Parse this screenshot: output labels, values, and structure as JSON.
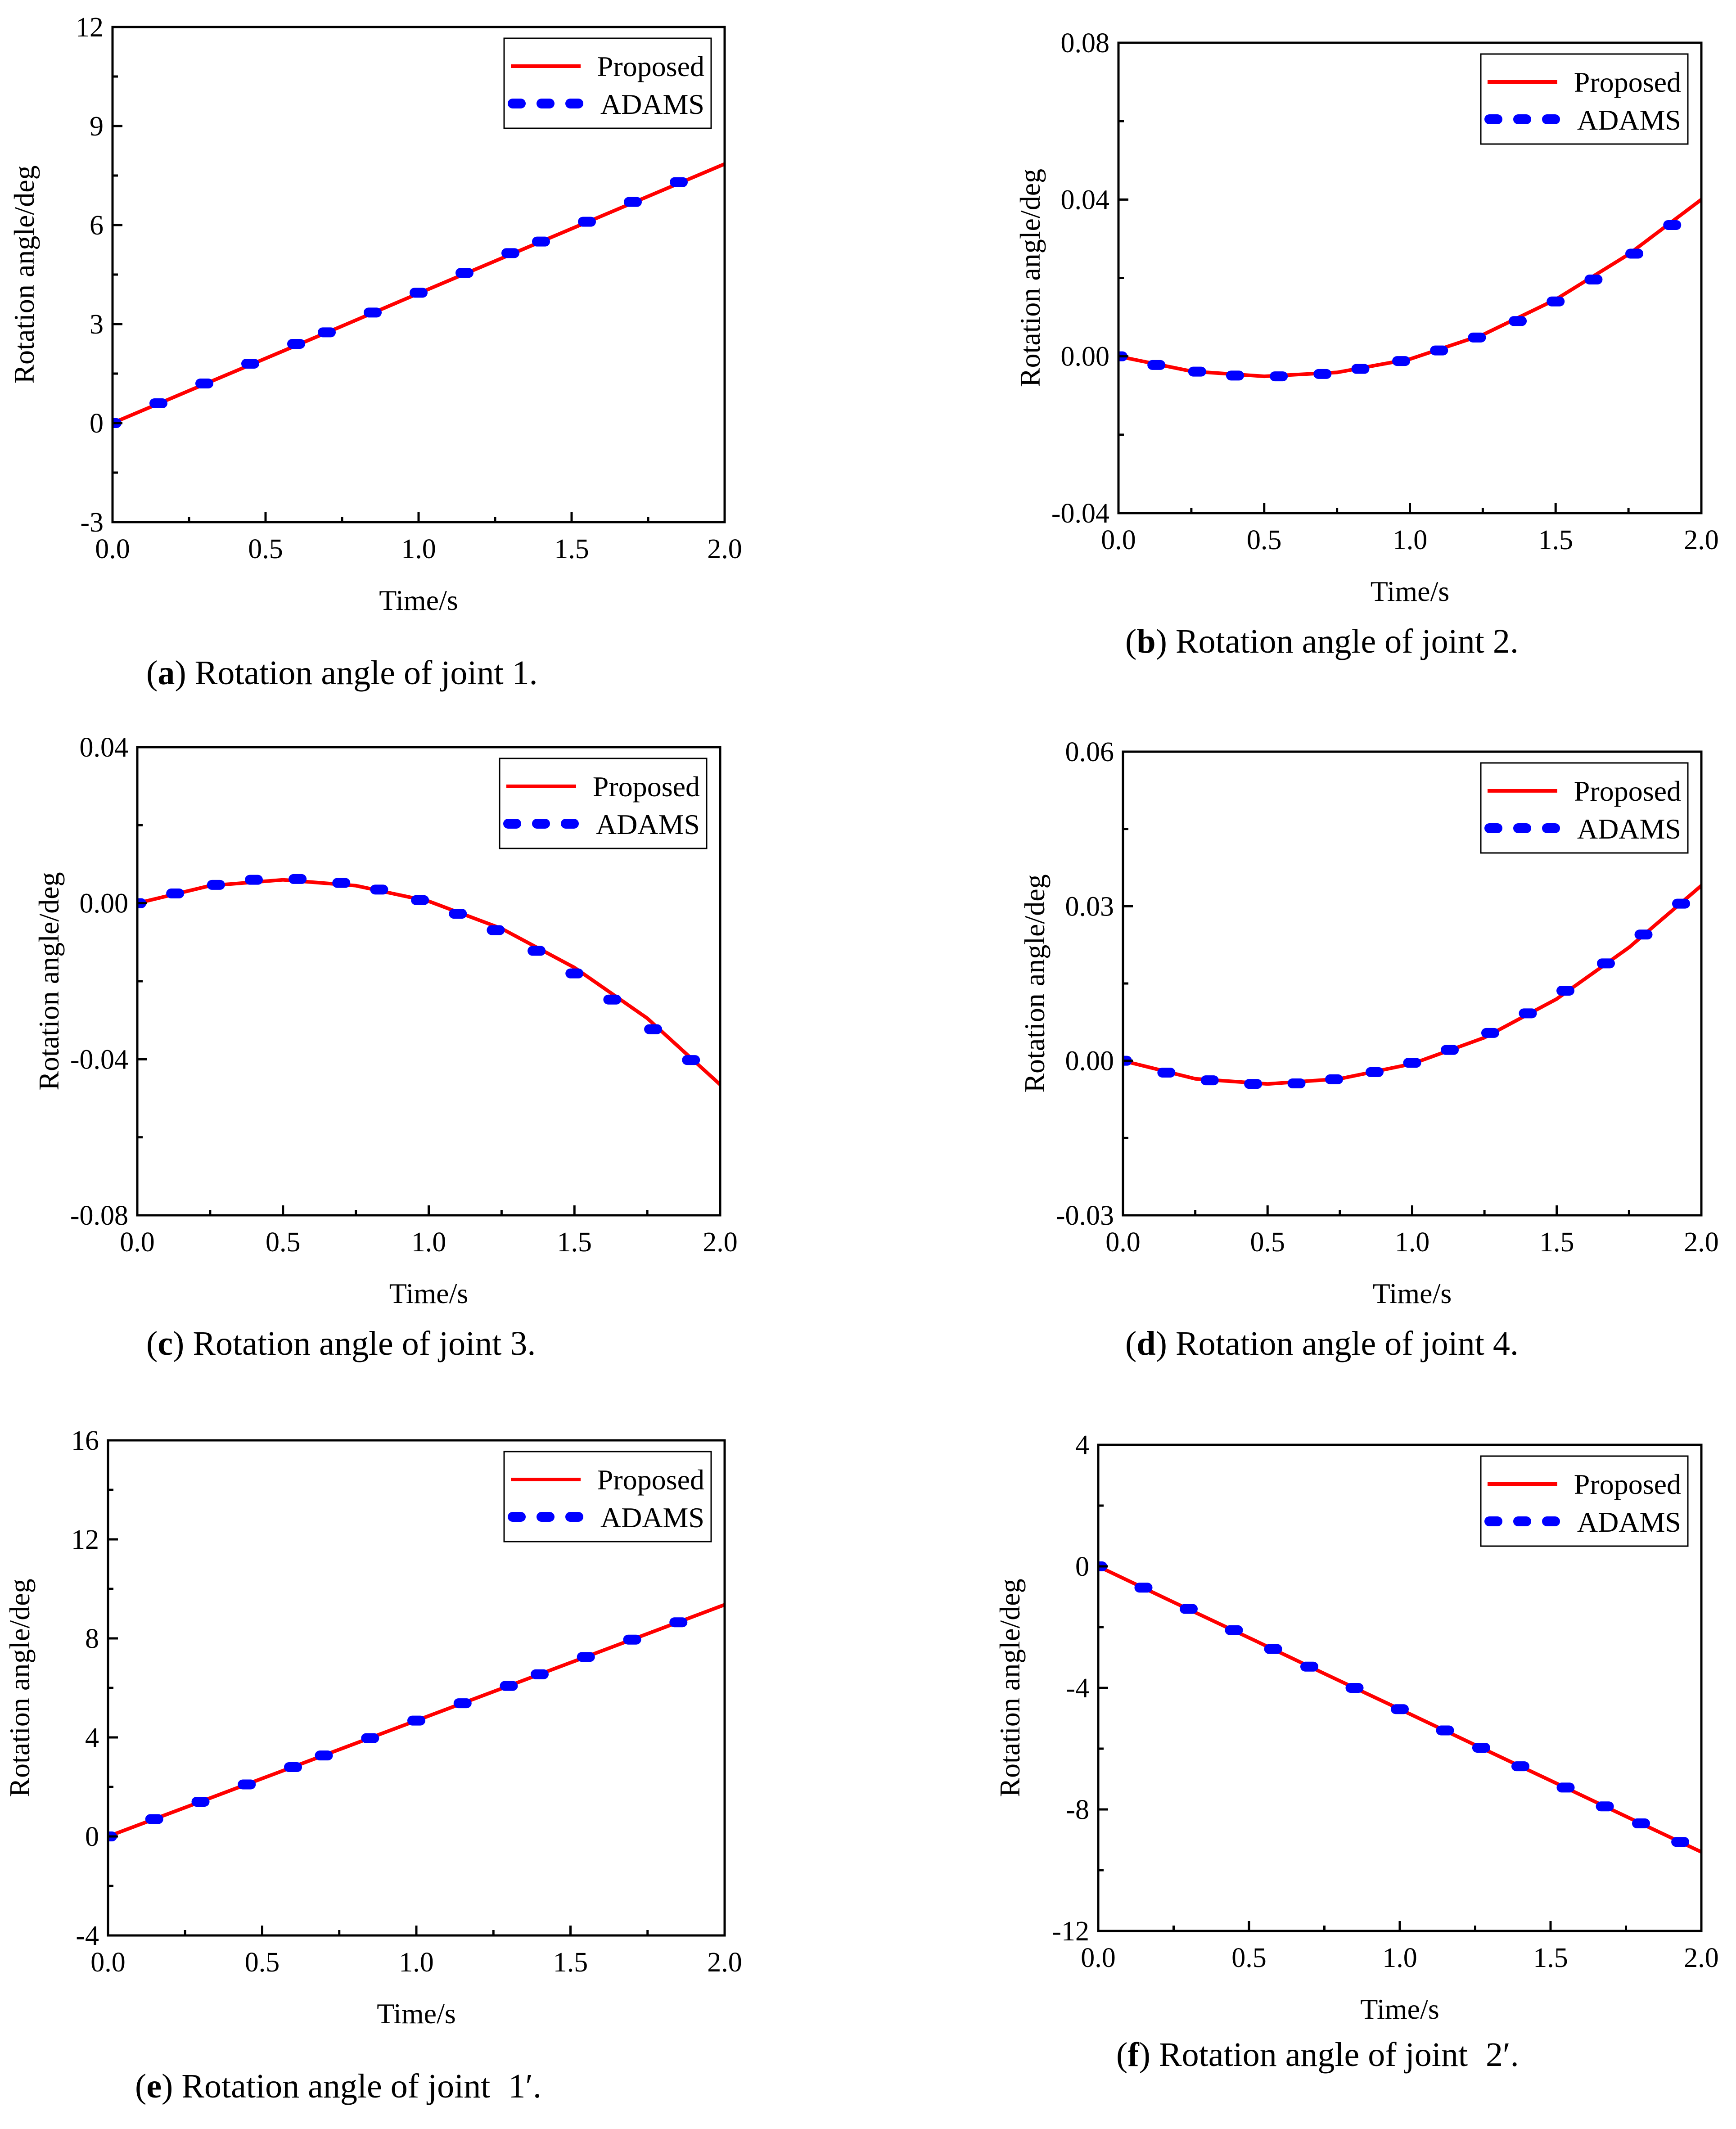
{
  "figure": {
    "legend": {
      "proposed_label": "Proposed",
      "adams_label": "ADAMS",
      "placement": "top-right"
    },
    "colors": {
      "proposed": "#ff0000",
      "adams": "#0000ff",
      "axes": "#000000"
    }
  },
  "chart_data": [
    {
      "id": "a",
      "type": "line",
      "caption_letter": "a",
      "caption_text": ") Rotation angle of joint 1.",
      "xlabel": "Time/s",
      "ylabel": "Rotation angle/deg",
      "xlim": [
        0,
        2
      ],
      "ylim": [
        -3,
        12
      ],
      "xticks": [
        0,
        0.5,
        1,
        1.5,
        2
      ],
      "xtick_labels": [
        "0.0",
        "0.5",
        "1.0",
        "1.5",
        "2.0"
      ],
      "yticks": [
        -3,
        0,
        3,
        6,
        9,
        12
      ],
      "ytick_labels": [
        "-3",
        "0",
        "3",
        "6",
        "9",
        "12"
      ],
      "series": [
        {
          "name": "Proposed",
          "style": "solid",
          "x": [
            0,
            0.25,
            0.5,
            0.75,
            1.0,
            1.25,
            1.5,
            1.75,
            2.0
          ],
          "y": [
            0,
            0.98,
            1.96,
            2.94,
            3.93,
            4.91,
            5.89,
            6.87,
            7.85
          ]
        },
        {
          "name": "ADAMS",
          "style": "dotted",
          "x": [
            0,
            0.15,
            0.3,
            0.45,
            0.6,
            0.7,
            0.85,
            1.0,
            1.15,
            1.3,
            1.4,
            1.55,
            1.7,
            1.85
          ],
          "y": [
            0,
            0.6,
            1.2,
            1.8,
            2.4,
            2.75,
            3.35,
            3.95,
            4.55,
            5.15,
            5.5,
            6.1,
            6.7,
            7.3
          ]
        }
      ]
    },
    {
      "id": "b",
      "type": "line",
      "caption_letter": "b",
      "caption_text": ") Rotation angle of joint 2.",
      "xlabel": "Time/s",
      "ylabel": "Rotation angle/deg",
      "xlim": [
        0,
        2
      ],
      "ylim": [
        -0.04,
        0.08
      ],
      "xticks": [
        0,
        0.5,
        1,
        1.5,
        2
      ],
      "xtick_labels": [
        "0.0",
        "0.5",
        "1.0",
        "1.5",
        "2.0"
      ],
      "yticks": [
        -0.04,
        0,
        0.04,
        0.08
      ],
      "ytick_labels": [
        "-0.04",
        "0.00",
        "0.04",
        "0.08"
      ],
      "series": [
        {
          "name": "Proposed",
          "style": "solid",
          "x": [
            0,
            0.25,
            0.5,
            0.75,
            1.0,
            1.25,
            1.5,
            1.75,
            2.0
          ],
          "y": [
            0,
            -0.0038,
            -0.0051,
            -0.0041,
            -0.0007,
            0.0055,
            0.0145,
            0.026,
            0.04
          ]
        },
        {
          "name": "ADAMS",
          "style": "dotted",
          "x": [
            0,
            0.13,
            0.27,
            0.4,
            0.55,
            0.7,
            0.83,
            0.97,
            1.1,
            1.23,
            1.37,
            1.5,
            1.63,
            1.77,
            1.9
          ],
          "y": [
            0,
            -0.0022,
            -0.0039,
            -0.0049,
            -0.0051,
            -0.0045,
            -0.0032,
            -0.0012,
            0.0015,
            0.0048,
            0.009,
            0.014,
            0.0196,
            0.0262,
            0.0335
          ]
        }
      ]
    },
    {
      "id": "c",
      "type": "line",
      "caption_letter": "c",
      "caption_text": ") Rotation angle of joint 3.",
      "xlabel": "Time/s",
      "ylabel": "Rotation angle/deg",
      "xlim": [
        0,
        2
      ],
      "ylim": [
        -0.08,
        0.04
      ],
      "xticks": [
        0,
        0.5,
        1,
        1.5,
        2
      ],
      "xtick_labels": [
        "0.0",
        "0.5",
        "1.0",
        "1.5",
        "2.0"
      ],
      "yticks": [
        -0.08,
        -0.04,
        0,
        0.04
      ],
      "ytick_labels": [
        "-0.08",
        "-0.04",
        "0.00",
        "0.04"
      ],
      "series": [
        {
          "name": "Proposed",
          "style": "solid",
          "x": [
            0,
            0.25,
            0.5,
            0.75,
            1.0,
            1.25,
            1.5,
            1.75,
            2.0
          ],
          "y": [
            0,
            0.0045,
            0.006,
            0.0045,
            0.0005,
            -0.0065,
            -0.0165,
            -0.0295,
            -0.0465
          ]
        },
        {
          "name": "ADAMS",
          "style": "dotted",
          "x": [
            0,
            0.13,
            0.27,
            0.4,
            0.55,
            0.7,
            0.83,
            0.97,
            1.1,
            1.23,
            1.37,
            1.5,
            1.63,
            1.77,
            1.9
          ],
          "y": [
            0,
            0.0025,
            0.0047,
            0.006,
            0.0062,
            0.0052,
            0.0035,
            0.0008,
            -0.0027,
            -0.0069,
            -0.0122,
            -0.018,
            -0.0247,
            -0.0323,
            -0.0402
          ]
        }
      ]
    },
    {
      "id": "d",
      "type": "line",
      "caption_letter": "d",
      "caption_text": ") Rotation angle of joint 4.",
      "xlabel": "Time/s",
      "ylabel": "Rotation angle/deg",
      "xlim": [
        0,
        2
      ],
      "ylim": [
        -0.03,
        0.06
      ],
      "xticks": [
        0,
        0.5,
        1,
        1.5,
        2
      ],
      "xtick_labels": [
        "0.0",
        "0.5",
        "1.0",
        "1.5",
        "2.0"
      ],
      "yticks": [
        -0.03,
        0,
        0.03,
        0.06
      ],
      "ytick_labels": [
        "-0.03",
        "0.00",
        "0.03",
        "0.06"
      ],
      "series": [
        {
          "name": "Proposed",
          "style": "solid",
          "x": [
            0,
            0.25,
            0.5,
            0.75,
            1.0,
            1.25,
            1.5,
            1.75,
            2.0
          ],
          "y": [
            0,
            -0.0035,
            -0.0045,
            -0.0035,
            -0.0006,
            0.0045,
            0.012,
            0.022,
            0.034
          ]
        },
        {
          "name": "ADAMS",
          "style": "dotted",
          "x": [
            0,
            0.15,
            0.3,
            0.45,
            0.6,
            0.73,
            0.87,
            1.0,
            1.13,
            1.27,
            1.4,
            1.53,
            1.67,
            1.8,
            1.93
          ],
          "y": [
            0,
            -0.0023,
            -0.0038,
            -0.0045,
            -0.0044,
            -0.0036,
            -0.0022,
            -0.0004,
            0.0021,
            0.0054,
            0.0092,
            0.0136,
            0.0189,
            0.0245,
            0.0305
          ]
        }
      ]
    },
    {
      "id": "e",
      "type": "line",
      "caption_letter": "e",
      "caption_text": ") Rotation angle of joint",
      "caption_symbol": "1′",
      "caption_end": ".",
      "xlabel": "Time/s",
      "ylabel": "Rotation angle/deg",
      "xlim": [
        0,
        2
      ],
      "ylim": [
        -4,
        16
      ],
      "xticks": [
        0,
        0.5,
        1,
        1.5,
        2
      ],
      "xtick_labels": [
        "0.0",
        "0.5",
        "1.0",
        "1.5",
        "2.0"
      ],
      "yticks": [
        -4,
        0,
        4,
        8,
        12,
        16
      ],
      "ytick_labels": [
        "-4",
        "0",
        "4",
        "8",
        "12",
        "16"
      ],
      "series": [
        {
          "name": "Proposed",
          "style": "solid",
          "x": [
            0,
            0.25,
            0.5,
            0.75,
            1.0,
            1.25,
            1.5,
            1.75,
            2.0
          ],
          "y": [
            0,
            1.17,
            2.34,
            3.51,
            4.68,
            5.85,
            7.02,
            8.19,
            9.36
          ]
        },
        {
          "name": "ADAMS",
          "style": "dotted",
          "x": [
            0,
            0.15,
            0.3,
            0.45,
            0.6,
            0.7,
            0.85,
            1.0,
            1.15,
            1.3,
            1.4,
            1.55,
            1.7,
            1.85
          ],
          "y": [
            0,
            0.7,
            1.4,
            2.1,
            2.8,
            3.27,
            3.97,
            4.68,
            5.38,
            6.08,
            6.55,
            7.25,
            7.95,
            8.65
          ]
        }
      ]
    },
    {
      "id": "f",
      "type": "line",
      "caption_letter": "f",
      "caption_text": ") Rotation angle of joint",
      "caption_symbol": "2′",
      "caption_end": ".",
      "xlabel": "Time/s",
      "ylabel": "Rotation angle/deg",
      "xlim": [
        0,
        2
      ],
      "ylim": [
        -12,
        4
      ],
      "xticks": [
        0,
        0.5,
        1,
        1.5,
        2
      ],
      "xtick_labels": [
        "0.0",
        "0.5",
        "1.0",
        "1.5",
        "2.0"
      ],
      "yticks": [
        -12,
        -8,
        -4,
        0,
        4
      ],
      "ytick_labels": [
        "-12",
        "-8",
        "-4",
        "0",
        "4"
      ],
      "series": [
        {
          "name": "Proposed",
          "style": "solid",
          "x": [
            0,
            0.25,
            0.5,
            0.75,
            1.0,
            1.25,
            1.5,
            1.75,
            2.0
          ],
          "y": [
            0,
            -1.18,
            -2.35,
            -3.53,
            -4.7,
            -5.88,
            -7.05,
            -8.23,
            -9.4
          ]
        },
        {
          "name": "ADAMS",
          "style": "dotted",
          "x": [
            0,
            0.15,
            0.3,
            0.45,
            0.58,
            0.7,
            0.85,
            1.0,
            1.15,
            1.27,
            1.4,
            1.55,
            1.68,
            1.8,
            1.93
          ],
          "y": [
            0,
            -0.7,
            -1.4,
            -2.1,
            -2.72,
            -3.3,
            -4.0,
            -4.7,
            -5.4,
            -5.97,
            -6.58,
            -7.28,
            -7.9,
            -8.46,
            -9.07
          ]
        }
      ]
    }
  ]
}
